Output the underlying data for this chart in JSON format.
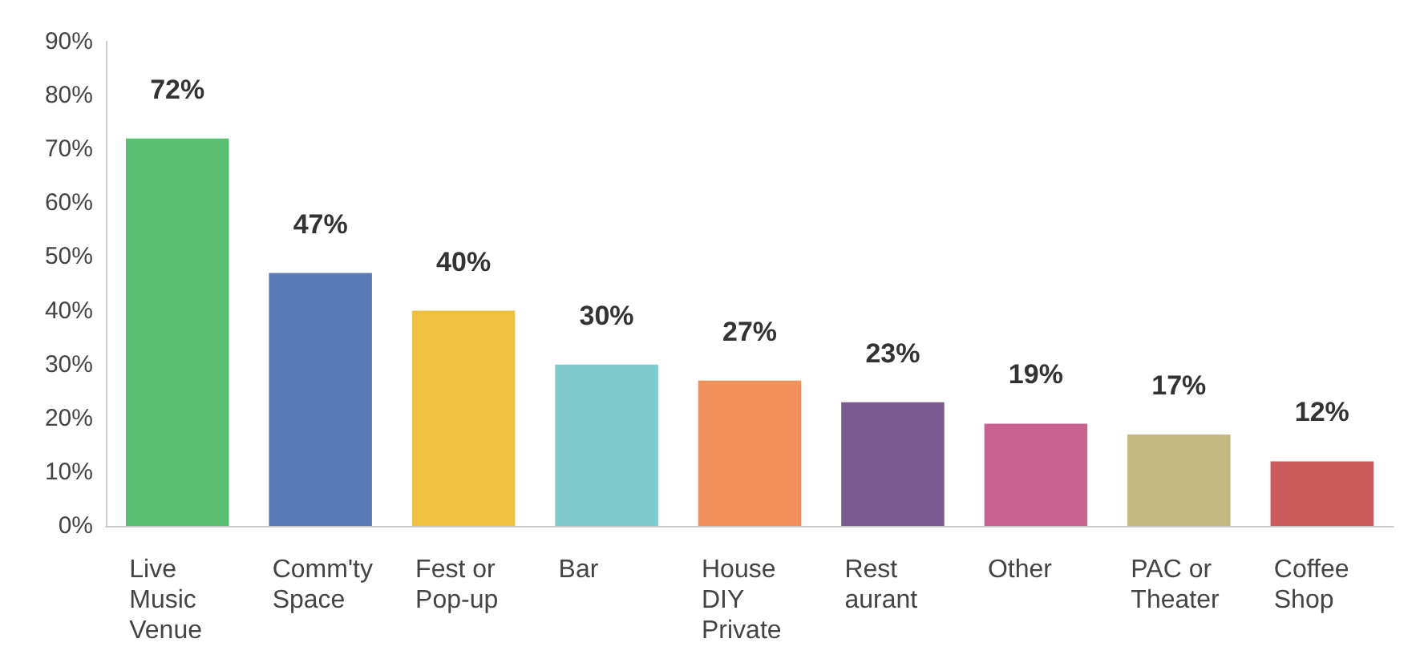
{
  "chart_data": {
    "type": "bar",
    "categories": [
      "Live Music Venue",
      "Comm'ty Space",
      "Fest or Pop-up",
      "Bar",
      "House DIY Private",
      "Rest aurant",
      "Other",
      "PAC or Theater",
      "Coffee Shop"
    ],
    "values": [
      72,
      47,
      40,
      30,
      27,
      23,
      19,
      17,
      12
    ],
    "colors": [
      "#5bbf73",
      "#5b7bb6",
      "#f0c141",
      "#7fc8cc",
      "#f0915b",
      "#7a5b8f",
      "#c8628f",
      "#c5b982",
      "#cc5a5c"
    ],
    "value_labels": [
      "72%",
      "47%",
      "40%",
      "30%",
      "27%",
      "23%",
      "19%",
      "17%",
      "12%"
    ],
    "ylim": [
      0,
      90
    ],
    "yticks": [
      {
        "value": 0,
        "label": "0%"
      },
      {
        "value": 10,
        "label": "10%"
      },
      {
        "value": 20,
        "label": "20%"
      },
      {
        "value": 30,
        "label": "30%"
      },
      {
        "value": 40,
        "label": "40%"
      },
      {
        "value": 50,
        "label": "50%"
      },
      {
        "value": 60,
        "label": "60%"
      },
      {
        "value": 70,
        "label": "70%"
      },
      {
        "value": 80,
        "label": "80%"
      },
      {
        "value": 90,
        "label": "90%"
      }
    ],
    "grid": false
  }
}
